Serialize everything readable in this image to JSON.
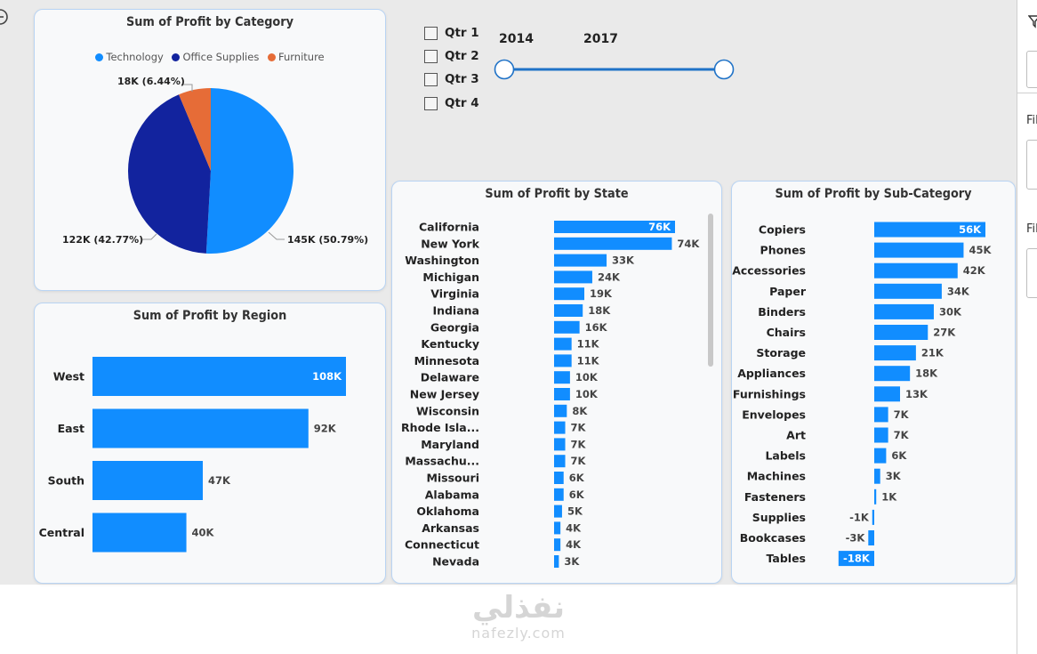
{
  "colors": {
    "bar": "#118dff",
    "technology": "#118dff",
    "office_supplies": "#12239e",
    "furniture": "#e66c37"
  },
  "category_card": {
    "title": "Sum of Profit by Category",
    "legend": [
      "Technology",
      "Office Supplies",
      "Furniture"
    ],
    "labels": {
      "technology": "145K (50.79%)",
      "office_supplies": "122K (42.77%)",
      "furniture": "18K (6.44%)"
    }
  },
  "filters": {
    "quarters": [
      "Qtr 1",
      "Qtr 2",
      "Qtr 3",
      "Qtr 4"
    ],
    "year_start": "2014",
    "year_end": "2017"
  },
  "region_card": {
    "title": "Sum of Profit by Region",
    "labels": [
      "108K",
      "92K",
      "47K",
      "40K"
    ]
  },
  "state_card": {
    "title": "Sum of Profit by State",
    "labels": [
      "76K",
      "74K",
      "33K",
      "24K",
      "19K",
      "18K",
      "16K",
      "11K",
      "11K",
      "10K",
      "10K",
      "8K",
      "7K",
      "7K",
      "7K",
      "6K",
      "6K",
      "5K",
      "4K",
      "4K",
      "3K"
    ]
  },
  "subcat_card": {
    "title": "Sum of Profit by Sub-Category",
    "labels": [
      "56K",
      "45K",
      "42K",
      "34K",
      "30K",
      "27K",
      "21K",
      "18K",
      "13K",
      "7K",
      "7K",
      "6K",
      "3K",
      "1K",
      "-1K",
      "-3K",
      "-18K"
    ]
  },
  "right_pane": {
    "filter_label": "Fil"
  },
  "watermark": {
    "arabic": "نفذلي",
    "latin": "nafezly.com"
  },
  "chart_data": [
    {
      "type": "pie",
      "title": "Sum of Profit by Category",
      "categories": [
        "Technology",
        "Office Supplies",
        "Furniture"
      ],
      "values": [
        145,
        122,
        18
      ],
      "percentages": [
        50.79,
        42.77,
        6.44
      ],
      "legend": "top"
    },
    {
      "type": "bar",
      "orientation": "horizontal",
      "title": "Sum of Profit by Region",
      "categories": [
        "West",
        "East",
        "South",
        "Central"
      ],
      "values": [
        108,
        92,
        47,
        40
      ]
    },
    {
      "type": "bar",
      "orientation": "horizontal",
      "title": "Sum of Profit by State",
      "categories": [
        "California",
        "New York",
        "Washington",
        "Michigan",
        "Virginia",
        "Indiana",
        "Georgia",
        "Kentucky",
        "Minnesota",
        "Delaware",
        "New Jersey",
        "Wisconsin",
        "Rhode Isla...",
        "Maryland",
        "Massachu...",
        "Missouri",
        "Alabama",
        "Oklahoma",
        "Arkansas",
        "Connecticut",
        "Nevada"
      ],
      "values": [
        76,
        74,
        33,
        24,
        19,
        18,
        16,
        11,
        11,
        10,
        10,
        8,
        7,
        7,
        7,
        6,
        6,
        5,
        4,
        4,
        3
      ]
    },
    {
      "type": "bar",
      "orientation": "horizontal",
      "title": "Sum of Profit by Sub-Category",
      "categories": [
        "Copiers",
        "Phones",
        "Accessories",
        "Paper",
        "Binders",
        "Chairs",
        "Storage",
        "Appliances",
        "Furnishings",
        "Envelopes",
        "Art",
        "Labels",
        "Machines",
        "Fasteners",
        "Supplies",
        "Bookcases",
        "Tables"
      ],
      "values": [
        56,
        45,
        42,
        34,
        30,
        27,
        21,
        18,
        13,
        7,
        7,
        6,
        3,
        1,
        -1,
        -3,
        -18
      ]
    }
  ]
}
